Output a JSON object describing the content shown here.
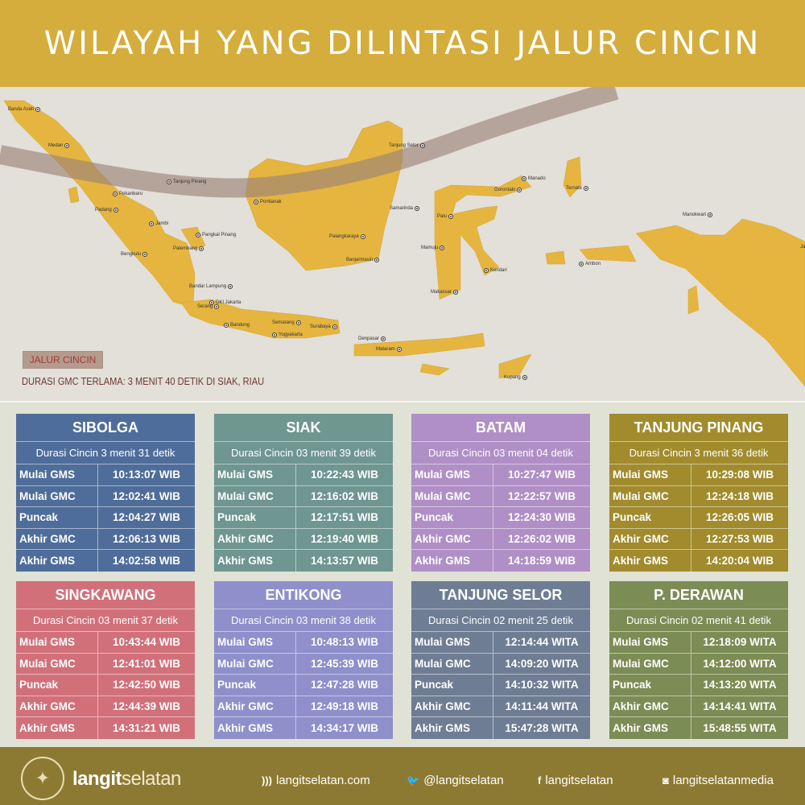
{
  "header": {
    "title": "WILAYAH YANG DILINTASI JALUR CINCIN"
  },
  "map": {
    "legend": "JALUR CINCIN",
    "note": "DURASI GMC TERLAMA: 3 MENIT 40 DETIK DI SIAK, RIAU",
    "cities": [
      "Banda Aceh",
      "Medan",
      "Tanjung Pinang",
      "Pekanbaru",
      "Padang",
      "Jambi",
      "Pangkal Pinang",
      "Palembang",
      "Bengkulu",
      "Bandar Lampung",
      "Serang",
      "DKI Jakarta",
      "Bandung",
      "Semarang",
      "Yogyakarta",
      "Surabaya",
      "Denpasar",
      "Mataram",
      "Pontianak",
      "Tanjung Selor",
      "Samarinda",
      "Palangkaraya",
      "Banjarmasin",
      "Manado",
      "Gorontalo",
      "Ternate",
      "Palu",
      "Mamuju",
      "Kendari",
      "Makassar",
      "Ambon",
      "Manokwari",
      "Jayapura",
      "Kupang"
    ],
    "land_color": "#e5b53f",
    "path_color": "#9c8478"
  },
  "cards": [
    {
      "name": "SIBOLGA",
      "duration": "Durasi Cincin 3 menit 31 detik",
      "color": "#4f6d9a",
      "rows": [
        [
          "Mulai GMS",
          "10:13:07 WIB"
        ],
        [
          "Mulai GMC",
          "12:02:41 WIB"
        ],
        [
          "Puncak",
          "12:04:27 WIB"
        ],
        [
          "Akhir GMC",
          "12:06:13  WIB"
        ],
        [
          "Akhir GMS",
          "14:02:58 WIB"
        ]
      ]
    },
    {
      "name": "SIAK",
      "duration": "Durasi Cincin 03 menit 39 detik",
      "color": "#6f9690",
      "rows": [
        [
          "Mulai GMS",
          "10:22:43 WIB"
        ],
        [
          "Mulai GMC",
          "12:16:02 WIB"
        ],
        [
          "Puncak",
          "12:17:51 WIB"
        ],
        [
          "Akhir GMC",
          "12:19:40 WIB"
        ],
        [
          "Akhir GMS",
          "14:13:57 WIB"
        ]
      ]
    },
    {
      "name": "BATAM",
      "duration": "Durasi Cincin 03 menit 04 detik",
      "color": "#b08fc6",
      "rows": [
        [
          "Mulai GMS",
          "10:27:47 WIB"
        ],
        [
          "Mulai GMC",
          "12:22:57 WIB"
        ],
        [
          "Puncak",
          "12:24:30 WIB"
        ],
        [
          "Akhir GMC",
          "12:26:02 WIB"
        ],
        [
          "Akhir GMS",
          "14:18:59 WIB"
        ]
      ]
    },
    {
      "name": "TANJUNG PINANG",
      "duration": "Durasi Cincin 3 menit 36 detik",
      "color": "#a18b2d",
      "rows": [
        [
          "Mulai GMS",
          "10:29:08 WIB"
        ],
        [
          "Mulai GMC",
          "12:24:18 WIB"
        ],
        [
          "Puncak",
          "12:26:05 WIB"
        ],
        [
          "Akhir GMC",
          "12:27:53 WIB"
        ],
        [
          "Akhir GMS",
          "14:20:04 WIB"
        ]
      ]
    },
    {
      "name": "SINGKAWANG",
      "duration": "Durasi Cincin 03 menit 37 detik",
      "color": "#d2707a",
      "rows": [
        [
          "Mulai GMS",
          "10:43:44 WIB"
        ],
        [
          "Mulai GMC",
          "12:41:01 WIB"
        ],
        [
          "Puncak",
          "12:42:50 WIB"
        ],
        [
          "Akhir GMC",
          "12:44:39 WIB"
        ],
        [
          "Akhir GMS",
          "14:31:21 WIB"
        ]
      ]
    },
    {
      "name": "ENTIKONG",
      "duration": "Durasi Cincin 03 menit 38 detik",
      "color": "#8e8fcb",
      "rows": [
        [
          "Mulai GMS",
          "10:48:13 WIB"
        ],
        [
          "Mulai GMC",
          "12:45:39 WIB"
        ],
        [
          "Puncak",
          "12:47:28 WIB"
        ],
        [
          "Akhir GMC",
          "12:49:18 WIB"
        ],
        [
          "Akhir GMS",
          "14:34:17 WIB"
        ]
      ]
    },
    {
      "name": "TANJUNG SELOR",
      "duration": "Durasi Cincin 02 menit 25 detik",
      "color": "#6e7d93",
      "rows": [
        [
          "Mulai GMS",
          "12:14:44 WITA"
        ],
        [
          "Mulai GMC",
          "14:09:20 WITA"
        ],
        [
          "Puncak",
          "14:10:32 WITA"
        ],
        [
          "Akhir GMC",
          "14:11:44 WITA"
        ],
        [
          "Akhir GMS",
          "15:47:28 WITA"
        ]
      ]
    },
    {
      "name": "P. DERAWAN",
      "duration": "Durasi Cincin 02 menit 41 detik",
      "color": "#7c8c55",
      "rows": [
        [
          "Mulai GMS",
          "12:18:09 WITA"
        ],
        [
          "Mulai GMC",
          "14:12:00 WITA"
        ],
        [
          "Puncak",
          "14:13:20 WITA"
        ],
        [
          "Akhir GMC",
          "14:14:41 WITA"
        ],
        [
          "Akhir GMS",
          "15:48:55 WITA"
        ]
      ]
    }
  ],
  "footer": {
    "logo_text": "LANGITSELATAN",
    "brand_bold": "langit",
    "brand_light": "selatan",
    "website": "langitselatan.com",
    "twitter": "@langitselatan",
    "facebook": "langitselatan",
    "instagram": "langitselatanmedia",
    "icons": [
      "rss-icon",
      "twitter-icon",
      "facebook-icon",
      "instagram-icon"
    ]
  }
}
